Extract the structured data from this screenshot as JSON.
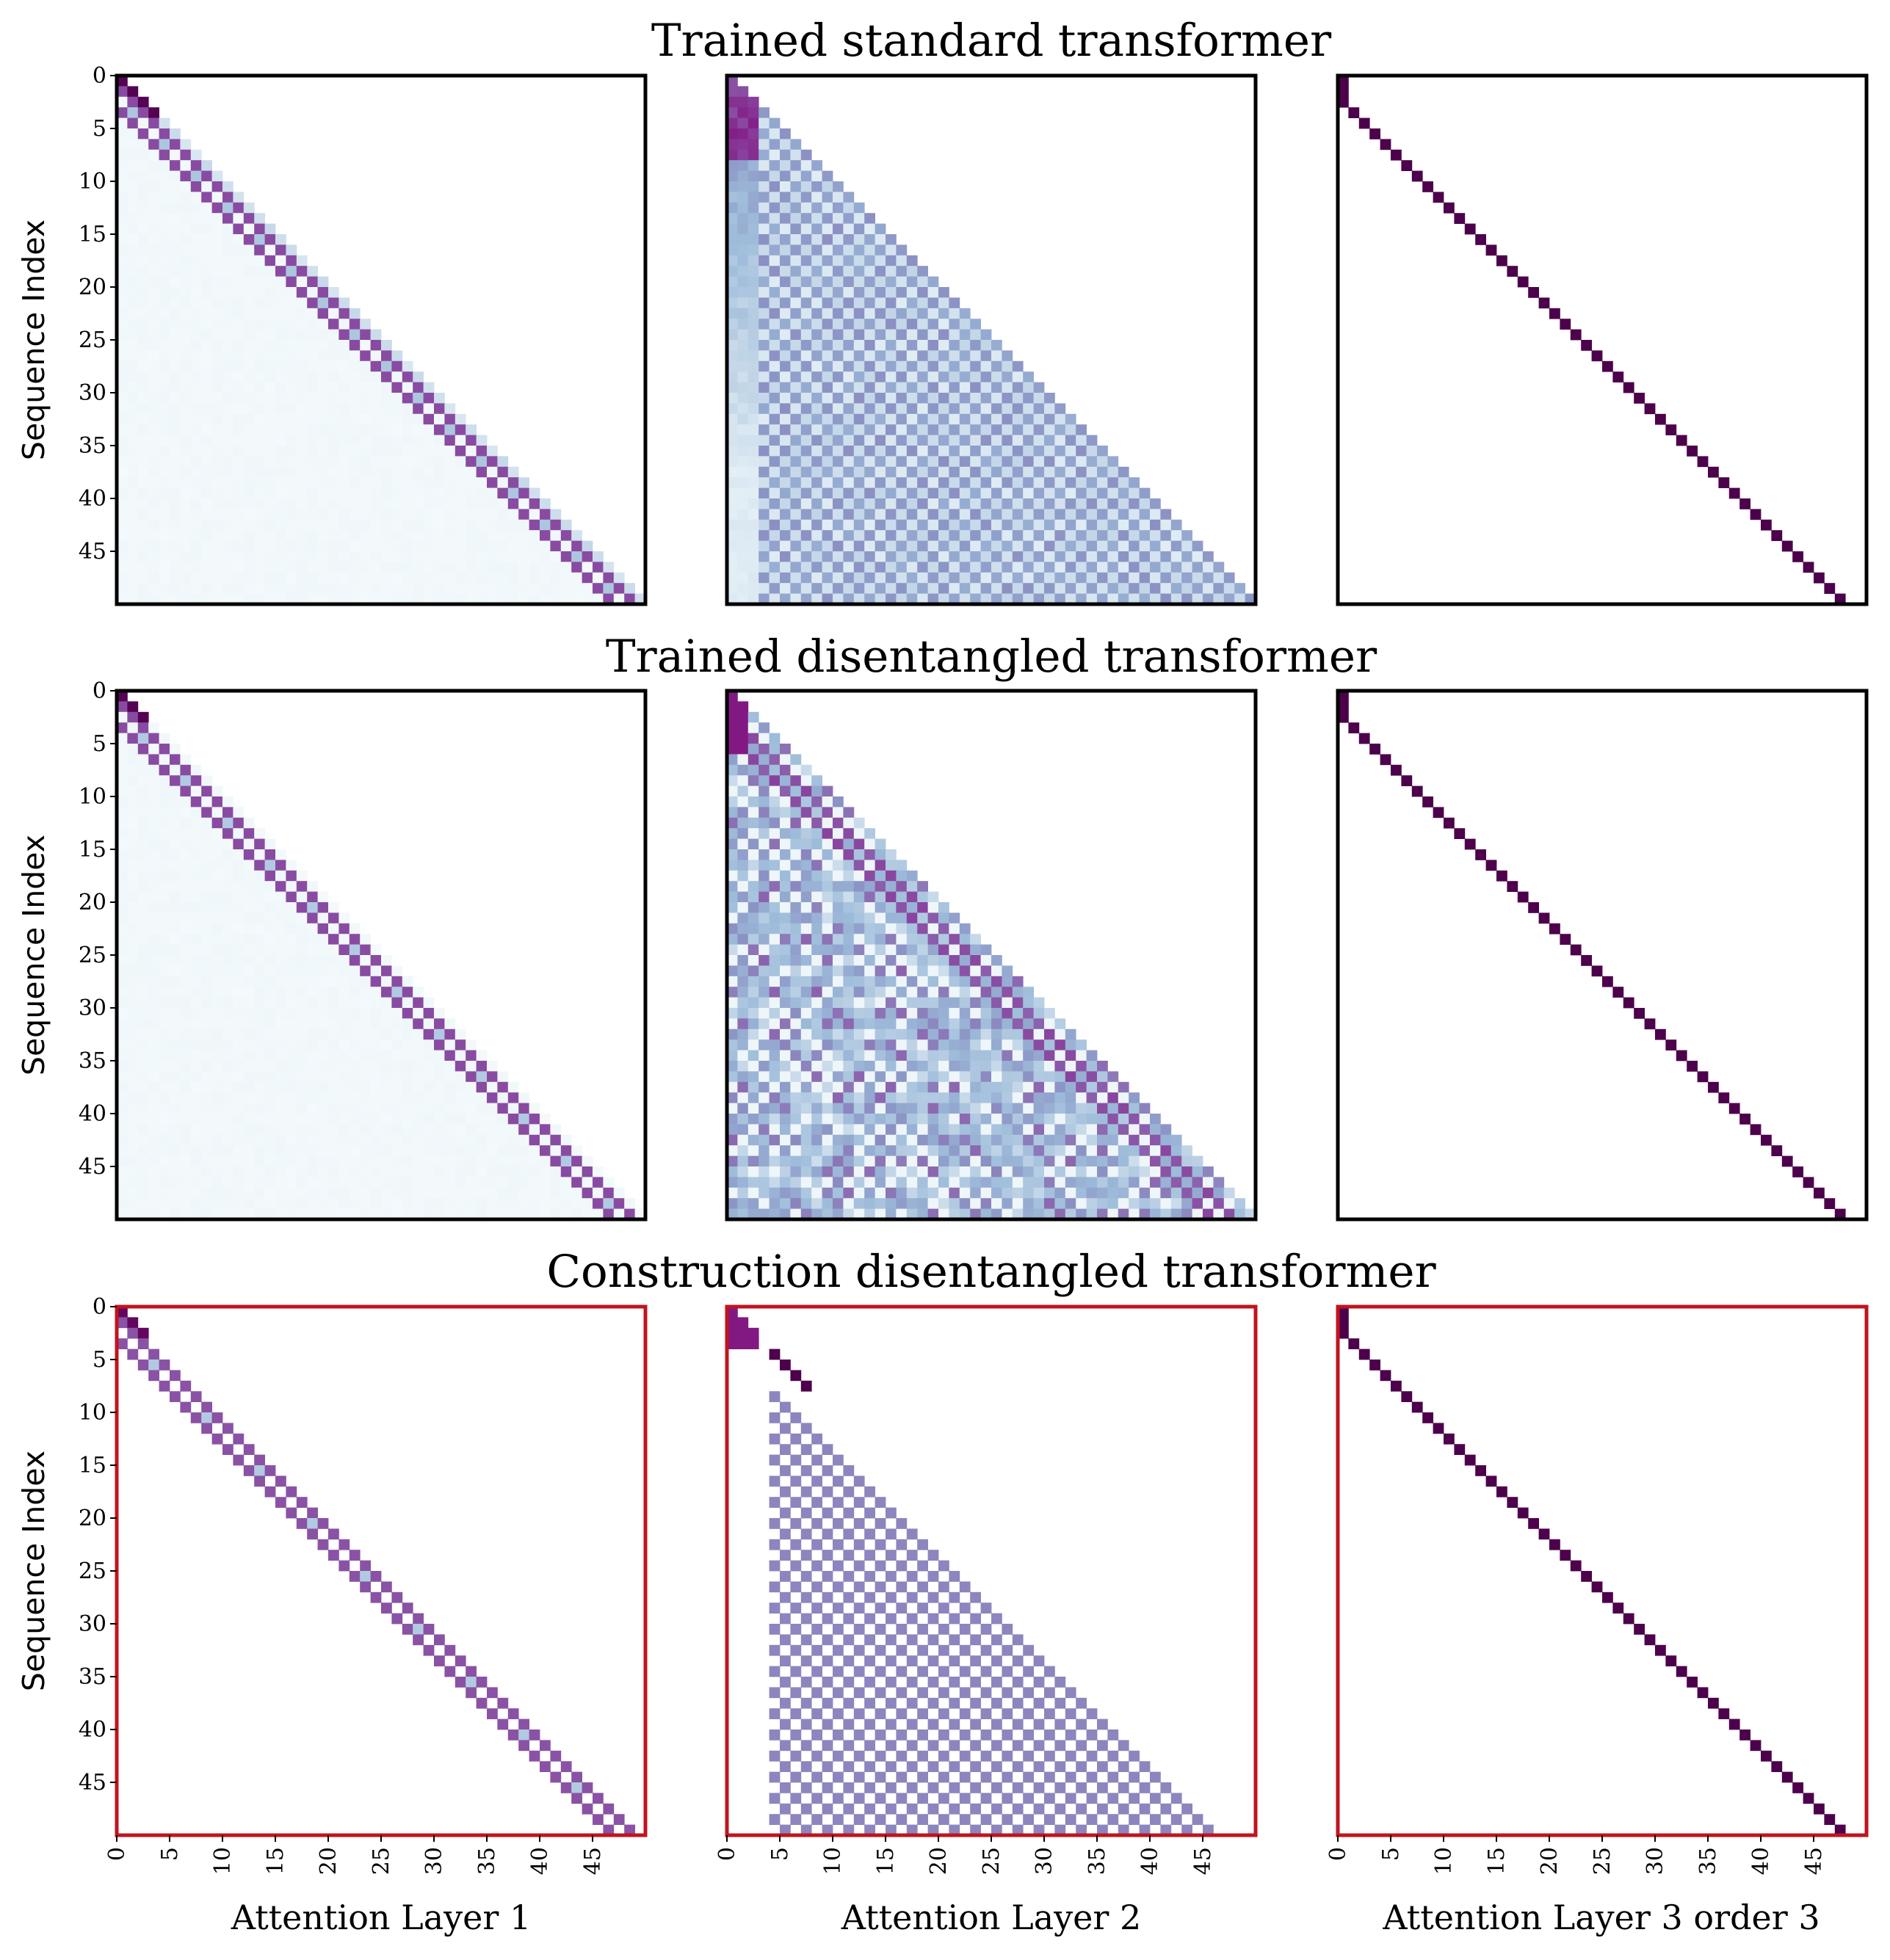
{
  "chart_data": {
    "type": "heatmap",
    "n": 50,
    "ylabel": "Sequence Index",
    "y_ticks": [
      0,
      5,
      10,
      15,
      20,
      25,
      30,
      35,
      40,
      45
    ],
    "x_ticks": [
      0,
      5,
      10,
      15,
      20,
      25,
      30,
      35,
      40,
      45
    ],
    "colormap": "BuPu",
    "colormap_stops": [
      "#f7fcfd",
      "#e0ecf4",
      "#bfd3e6",
      "#9ebcda",
      "#8c96c6",
      "#8c6bb1",
      "#88419d",
      "#810f7c",
      "#4d004b"
    ],
    "columns": [
      "Attention Layer 1",
      "Attention Layer 2",
      "Attention Layer 3 order 3"
    ],
    "rows": [
      {
        "title": "Trained standard transformer",
        "frame_color": "#000000"
      },
      {
        "title": "Trained disentangled transformer",
        "frame_color": "#000000"
      },
      {
        "title": "Construction disentangled transformer",
        "frame_color": "#c0141e"
      }
    ]
  }
}
